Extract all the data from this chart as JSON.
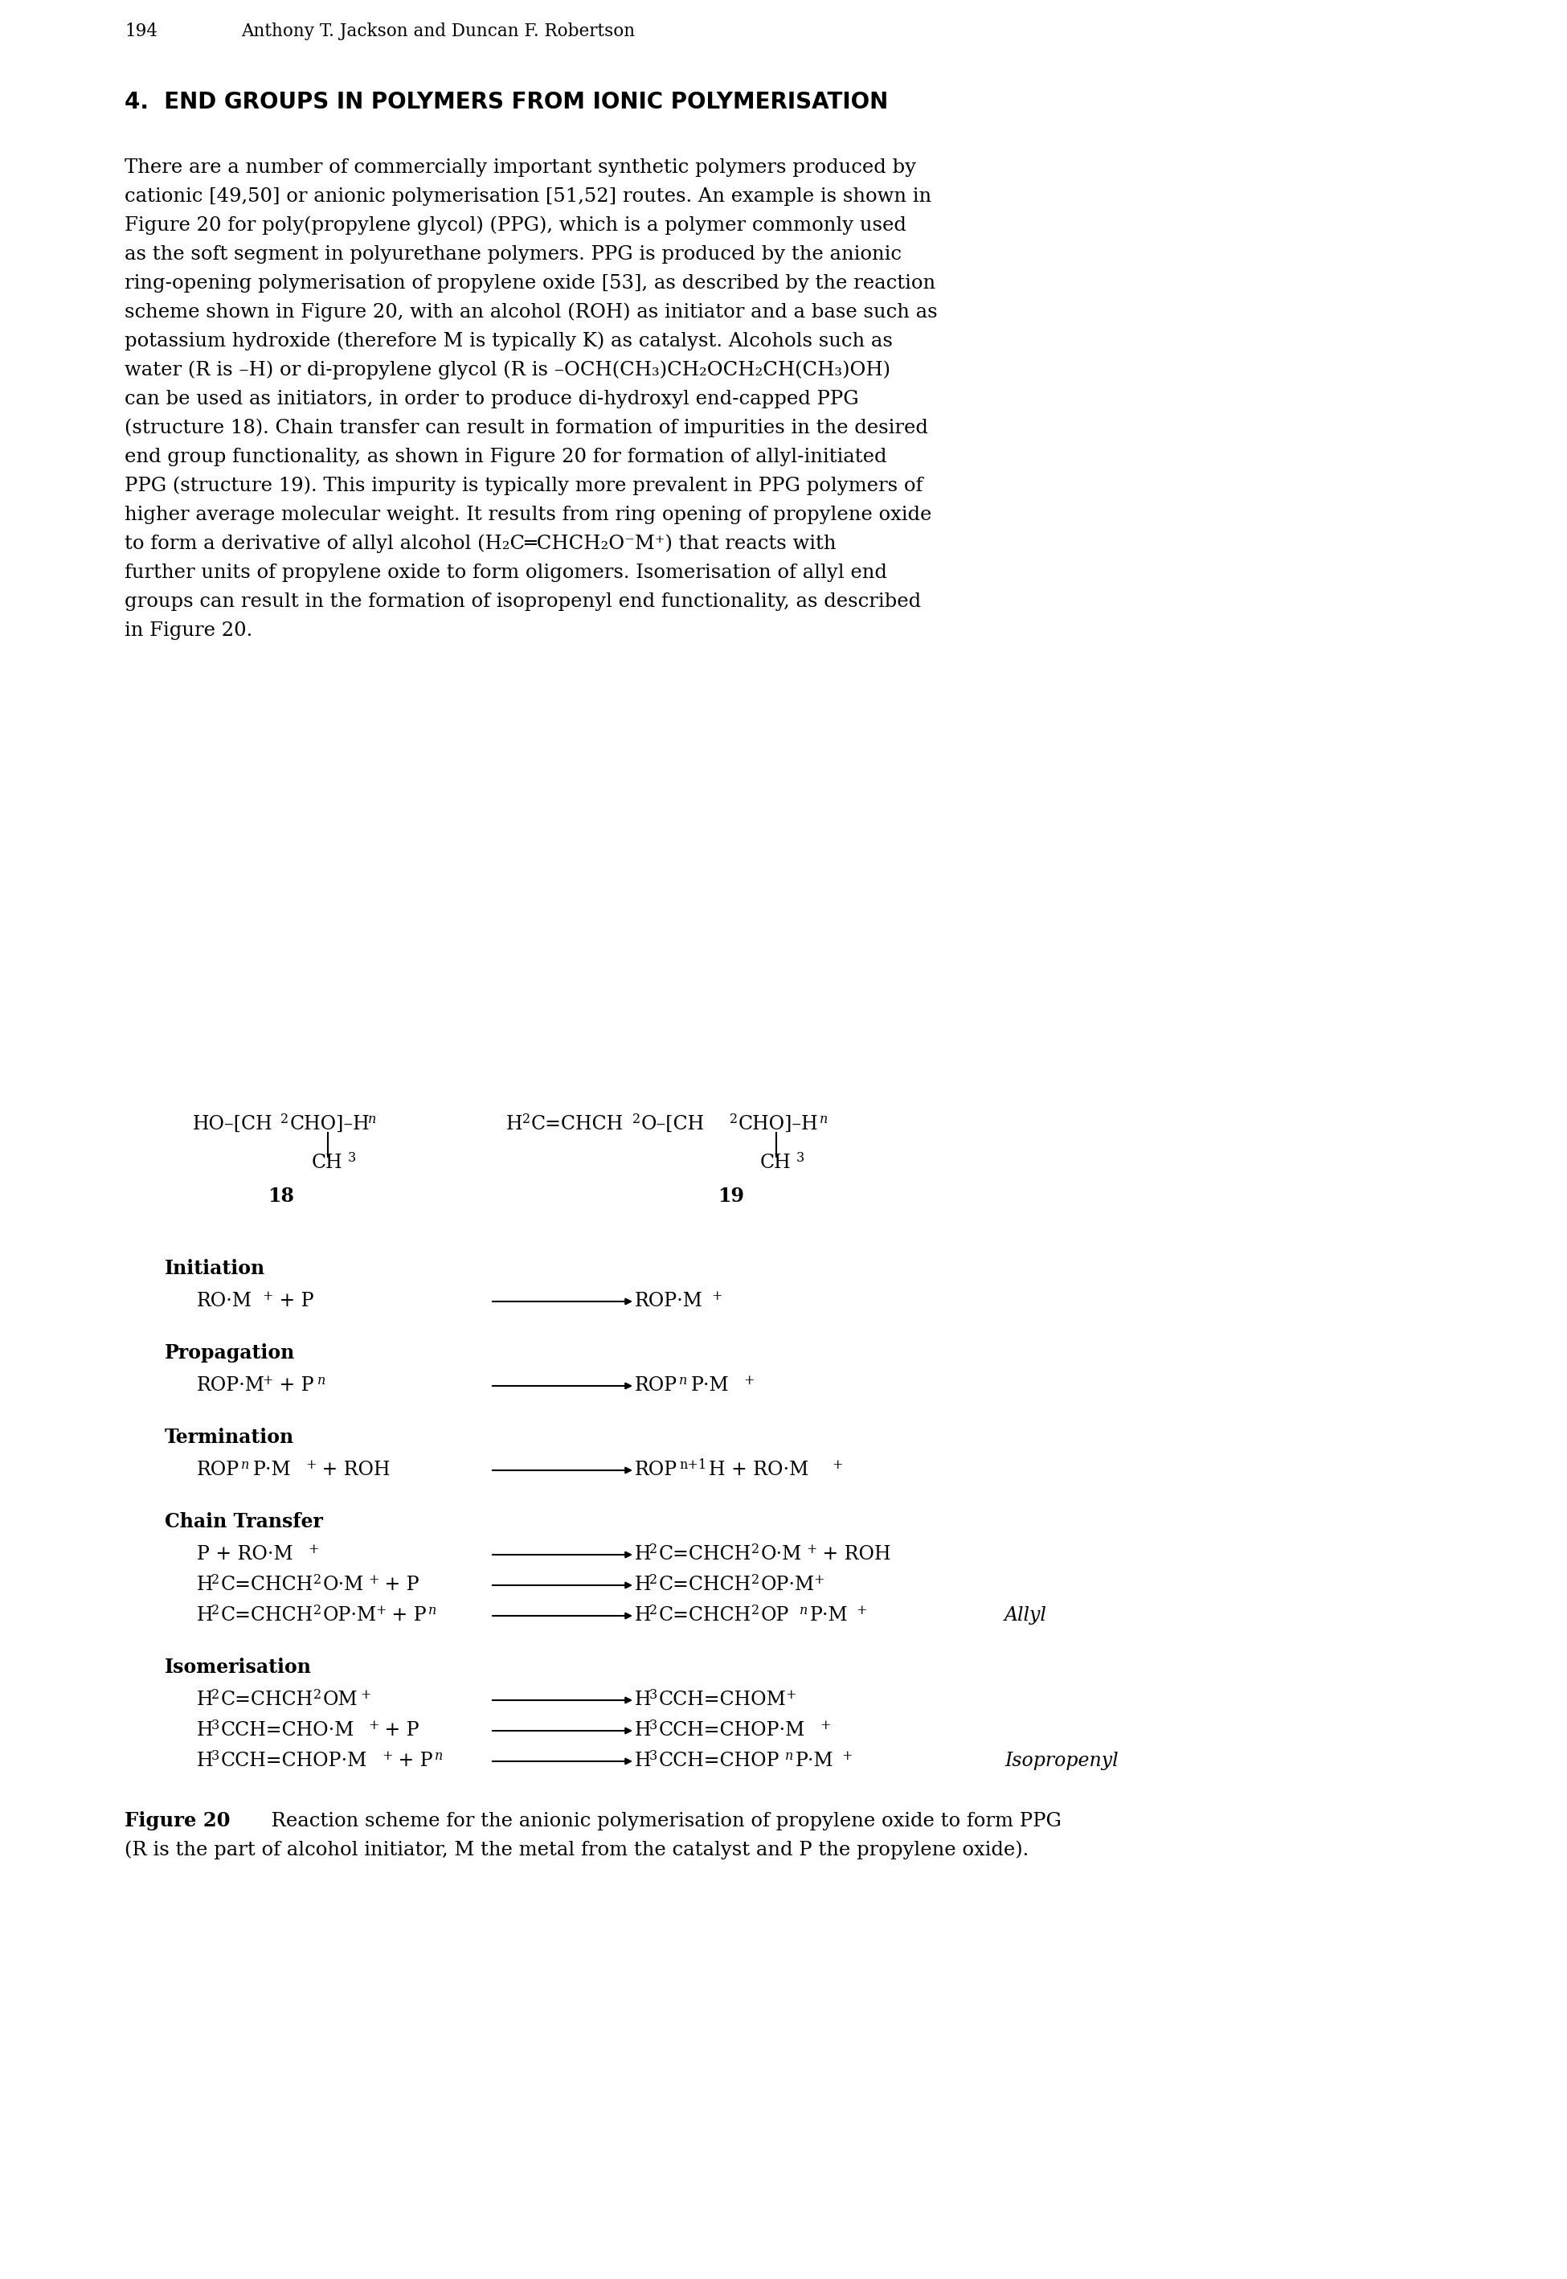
{
  "page_number": "194",
  "authors": "Anthony T. Jackson and Duncan F. Robertson",
  "section_title": "4.  END GROUPS IN POLYMERS FROM IONIC POLYMERISATION",
  "background_color": "#ffffff",
  "body_lines": [
    "There are a number of commercially important synthetic polymers produced by",
    "cationic [49,50] or anionic polymerisation [51,52] routes. An example is shown in",
    "Figure 20 for poly(propylene glycol) (PPG), which is a polymer commonly used",
    "as the soft segment in polyurethane polymers. PPG is produced by the anionic",
    "ring-opening polymerisation of propylene oxide [53], as described by the reaction",
    "scheme shown in Figure 20, with an alcohol (ROH) as initiator and a base such as",
    "potassium hydroxide (therefore M is typically K) as catalyst. Alcohols such as",
    "water (R is –H) or di-propylene glycol (R is –OCH(CH₃)CH₂OCH₂CH(CH₃)OH)",
    "can be used as initiators, in order to produce di-hydroxyl end-capped PPG",
    "(structure 18). Chain transfer can result in formation of impurities in the desired",
    "end group functionality, as shown in Figure 20 for formation of allyl-initiated",
    "PPG (structure 19). This impurity is typically more prevalent in PPG polymers of",
    "higher average molecular weight. It results from ring opening of propylene oxide",
    "to form a derivative of allyl alcohol (H₂C═CHCH₂O⁻M⁺) that reacts with",
    "further units of propylene oxide to form oligomers. Isomerisation of allyl end",
    "groups can result in the formation of isopropenyl end functionality, as described",
    "in Figure 20."
  ]
}
